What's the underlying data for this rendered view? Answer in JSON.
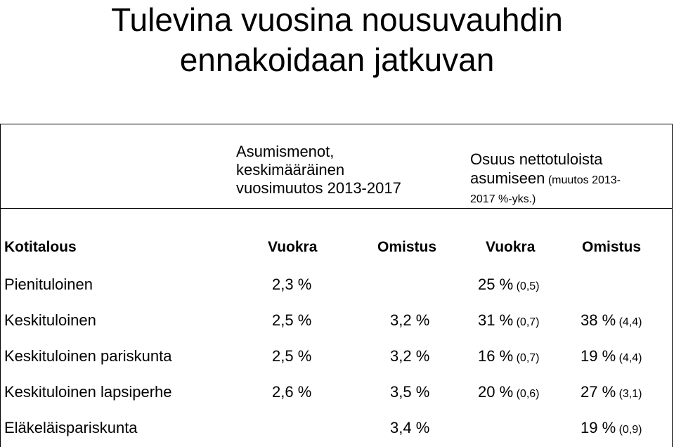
{
  "title": {
    "line1": "Tulevina vuosina nousuvauhdin",
    "line2": "ennakoidaan jatkuvan"
  },
  "groups": {
    "housing_costs": {
      "line1": "Asumismenot,",
      "line2": "keskimääräinen",
      "line3": "vuosimuutos 2013-2017"
    },
    "income_share": {
      "line1": "Osuus nettotuloista",
      "line2a": "asumiseen",
      "line2b": " (muutos 2013-",
      "line3": "2017 %-yks.)"
    }
  },
  "table": {
    "headers": [
      "Kotitalous",
      "Vuokra",
      "Omistus",
      "Vuokra",
      "Omistus"
    ],
    "rows": [
      {
        "household": "Pienituloinen",
        "rent": "2,3 %",
        "own": "",
        "share_rent": "25 %",
        "share_rent_change": " (0,5)",
        "share_own": "",
        "share_own_change": ""
      },
      {
        "household": "Keskituloinen",
        "rent": "2,5 %",
        "own": "3,2 %",
        "share_rent": "31 %",
        "share_rent_change": " (0,7)",
        "share_own": "38 %",
        "share_own_change": " (4,4)"
      },
      {
        "household": "Keskituloinen pariskunta",
        "rent": "2,5 %",
        "own": "3,2 %",
        "share_rent": "16 %",
        "share_rent_change": " (0,7)",
        "share_own": "19 %",
        "share_own_change": " (4,4)"
      },
      {
        "household": "Keskituloinen lapsiperhe",
        "rent": "2,6 %",
        "own": "3,5 %",
        "share_rent": "20 %",
        "share_rent_change": " (0,6)",
        "share_own": "27 %",
        "share_own_change": " (3,1)"
      },
      {
        "household": "Eläkeläispariskunta",
        "rent": "",
        "own": "3,4 %",
        "share_rent": "",
        "share_rent_change": "",
        "share_own": "19 %",
        "share_own_change": " (0,9)"
      }
    ]
  }
}
